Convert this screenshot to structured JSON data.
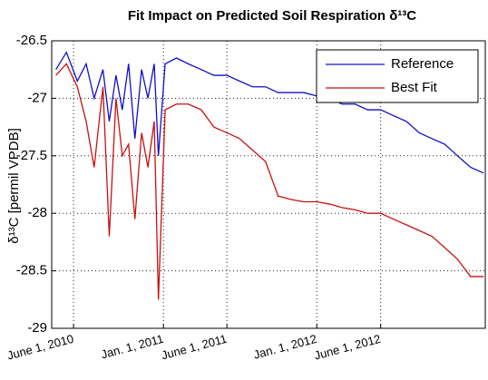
{
  "chart_data": {
    "type": "line",
    "title": "Fit Impact on Predicted Soil Respiration δ¹³C",
    "y_label": "δ¹³C [permil VPDB]",
    "x": [
      "2010-04-20",
      "2010-05-15",
      "2010-06-10",
      "2010-07-01",
      "2010-07-20",
      "2010-08-10",
      "2010-08-25",
      "2010-09-10",
      "2010-09-25",
      "2010-10-10",
      "2010-10-25",
      "2010-11-10",
      "2010-11-25",
      "2010-12-10",
      "2010-12-20",
      "2011-01-05",
      "2011-02-01",
      "2011-03-01",
      "2011-04-01",
      "2011-05-01",
      "2011-06-01",
      "2011-07-01",
      "2011-08-01",
      "2011-09-01",
      "2011-10-01",
      "2011-11-01",
      "2011-12-01",
      "2012-01-01",
      "2012-02-01",
      "2012-03-01",
      "2012-04-01",
      "2012-05-01",
      "2012-06-01",
      "2012-07-01",
      "2012-08-01",
      "2012-09-01",
      "2012-10-01",
      "2012-11-01",
      "2012-12-01",
      "2013-01-01",
      "2013-02-01"
    ],
    "series": [
      {
        "name": "Reference",
        "color": "#1010c8",
        "values": [
          -26.75,
          -26.6,
          -26.85,
          -26.7,
          -27.0,
          -26.75,
          -27.2,
          -26.8,
          -27.1,
          -26.7,
          -27.35,
          -26.75,
          -27.0,
          -26.7,
          -27.5,
          -26.7,
          -26.65,
          -26.7,
          -26.75,
          -26.8,
          -26.8,
          -26.85,
          -26.9,
          -26.9,
          -26.95,
          -26.95,
          -26.95,
          -26.98,
          -27.0,
          -27.05,
          -27.05,
          -27.1,
          -27.1,
          -27.15,
          -27.2,
          -27.3,
          -27.35,
          -27.4,
          -27.5,
          -27.6,
          -27.65
        ]
      },
      {
        "name": "Best Fit",
        "color": "#c81010",
        "values": [
          -26.8,
          -26.7,
          -26.9,
          -27.2,
          -27.6,
          -26.9,
          -28.2,
          -27.0,
          -27.5,
          -27.4,
          -28.05,
          -27.3,
          -27.6,
          -27.2,
          -28.75,
          -27.1,
          -27.05,
          -27.05,
          -27.1,
          -27.25,
          -27.3,
          -27.35,
          -27.45,
          -27.55,
          -27.85,
          -27.88,
          -27.9,
          -27.9,
          -27.92,
          -27.95,
          -27.97,
          -28.0,
          -28.0,
          -28.05,
          -28.1,
          -28.15,
          -28.2,
          -28.3,
          -28.4,
          -28.55,
          -28.55
        ]
      }
    ],
    "xlim": [
      "2010-04-10",
      "2013-02-05"
    ],
    "xticks": [
      {
        "value": "2010-06-01",
        "label": "June 1, 2010"
      },
      {
        "value": "2011-01-01",
        "label": "Jan. 1, 2011"
      },
      {
        "value": "2011-06-01",
        "label": "June 1, 2011"
      },
      {
        "value": "2012-01-01",
        "label": "Jan. 1, 2012"
      },
      {
        "value": "2012-06-01",
        "label": "June 1, 2012"
      }
    ],
    "ylim": [
      -29,
      -26.5
    ],
    "yticks": [
      -29,
      -28.5,
      -28,
      -27.5,
      -27,
      -26.5
    ],
    "grid": true,
    "legend": "upper right"
  }
}
